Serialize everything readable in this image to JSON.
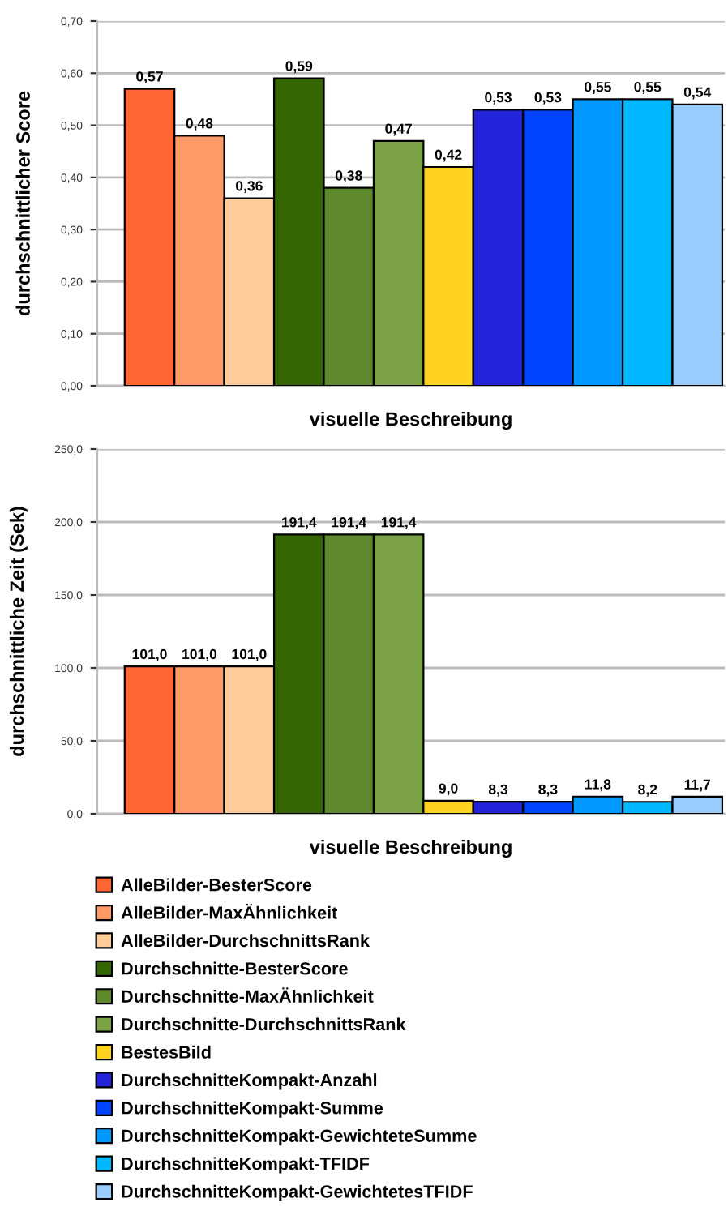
{
  "chart_data": [
    {
      "type": "bar",
      "xlabel": "visuelle Beschreibung",
      "ylabel": "durchschnittlicher Score",
      "categories": [
        null
      ],
      "ylim": [
        0,
        0.7
      ],
      "yticks": [
        {
          "value": 0,
          "label": "0,00"
        },
        {
          "value": 0.1,
          "label": "0,10"
        },
        {
          "value": 0.2,
          "label": "0,20"
        },
        {
          "value": 0.3,
          "label": "0,30"
        },
        {
          "value": 0.4,
          "label": "0,40"
        },
        {
          "value": 0.5,
          "label": "0,50"
        },
        {
          "value": 0.6,
          "label": "0,60"
        },
        {
          "value": 0.7,
          "label": "0,70"
        }
      ],
      "grid": "y",
      "series": [
        {
          "color": "#ff6633",
          "values": [
            0.57
          ],
          "value_labels": [
            "0,57"
          ]
        },
        {
          "color": "#ff9966",
          "values": [
            0.48
          ],
          "value_labels": [
            "0,48"
          ]
        },
        {
          "color": "#ffcc99",
          "values": [
            0.36
          ],
          "value_labels": [
            "0,36"
          ]
        },
        {
          "color": "#336600",
          "values": [
            0.59
          ],
          "value_labels": [
            "0,59"
          ]
        },
        {
          "color": "#5e8a2b",
          "values": [
            0.38
          ],
          "value_labels": [
            "0,38"
          ]
        },
        {
          "color": "#7ba346",
          "values": [
            0.47
          ],
          "value_labels": [
            "0,47"
          ]
        },
        {
          "color": "#ffd320",
          "values": [
            0.42
          ],
          "value_labels": [
            "0,42"
          ]
        },
        {
          "color": "#2323dc",
          "values": [
            0.53
          ],
          "value_labels": [
            "0,53"
          ]
        },
        {
          "color": "#0044ff",
          "values": [
            0.53
          ],
          "value_labels": [
            "0,53"
          ]
        },
        {
          "color": "#0099ff",
          "values": [
            0.55
          ],
          "value_labels": [
            "0,55"
          ]
        },
        {
          "color": "#00b8ff",
          "values": [
            0.55
          ],
          "value_labels": [
            "0,55"
          ]
        },
        {
          "color": "#99ccff",
          "values": [
            0.54
          ],
          "value_labels": [
            "0,54"
          ]
        }
      ]
    },
    {
      "type": "bar",
      "xlabel": "visuelle Beschreibung",
      "ylabel": "durchschnittliche Zeit (Sek)",
      "categories": [
        null
      ],
      "ylim": [
        0,
        250
      ],
      "yticks": [
        {
          "value": 0,
          "label": "0,0"
        },
        {
          "value": 50,
          "label": "50,0"
        },
        {
          "value": 100,
          "label": "100,0"
        },
        {
          "value": 150,
          "label": "150,0"
        },
        {
          "value": 200,
          "label": "200,0"
        },
        {
          "value": 250,
          "label": "250,0"
        }
      ],
      "grid": "y",
      "legend": "bottom",
      "series": [
        {
          "name": "AlleBilder-BesterScore",
          "color": "#ff6633",
          "values": [
            101.0
          ],
          "value_labels": [
            "101,0"
          ]
        },
        {
          "name": "AlleBilder-MaxÄhnlichkeit",
          "color": "#ff9966",
          "values": [
            101.0
          ],
          "value_labels": [
            "101,0"
          ]
        },
        {
          "name": "AlleBilder-DurchschnittsRank",
          "color": "#ffcc99",
          "values": [
            101.0
          ],
          "value_labels": [
            "101,0"
          ]
        },
        {
          "name": "Durchschnitte-BesterScore",
          "color": "#336600",
          "values": [
            191.4
          ],
          "value_labels": [
            "191,4"
          ]
        },
        {
          "name": "Durchschnitte-MaxÄhnlichkeit",
          "color": "#5e8a2b",
          "values": [
            191.4
          ],
          "value_labels": [
            "191,4"
          ]
        },
        {
          "name": "Durchschnitte-DurchschnittsRank",
          "color": "#7ba346",
          "values": [
            191.4
          ],
          "value_labels": [
            "191,4"
          ]
        },
        {
          "name": "BestesBild",
          "color": "#ffd320",
          "values": [
            9.0
          ],
          "value_labels": [
            "9,0"
          ]
        },
        {
          "name": "DurchschnitteKompakt-Anzahl",
          "color": "#2323dc",
          "values": [
            8.3
          ],
          "value_labels": [
            "8,3"
          ]
        },
        {
          "name": "DurchschnitteKompakt-Summe",
          "color": "#0044ff",
          "values": [
            8.3
          ],
          "value_labels": [
            "8,3"
          ]
        },
        {
          "name": "DurchschnitteKompakt-GewichteteSumme",
          "color": "#0099ff",
          "values": [
            11.8
          ],
          "value_labels": [
            "11,8"
          ]
        },
        {
          "name": "DurchschnitteKompakt-TFIDF",
          "color": "#00b8ff",
          "values": [
            8.2
          ],
          "value_labels": [
            "8,2"
          ]
        },
        {
          "name": "DurchschnitteKompakt-GewichtetesTFIDF",
          "color": "#99ccff",
          "values": [
            11.7
          ],
          "value_labels": [
            "11,7"
          ]
        }
      ]
    }
  ]
}
